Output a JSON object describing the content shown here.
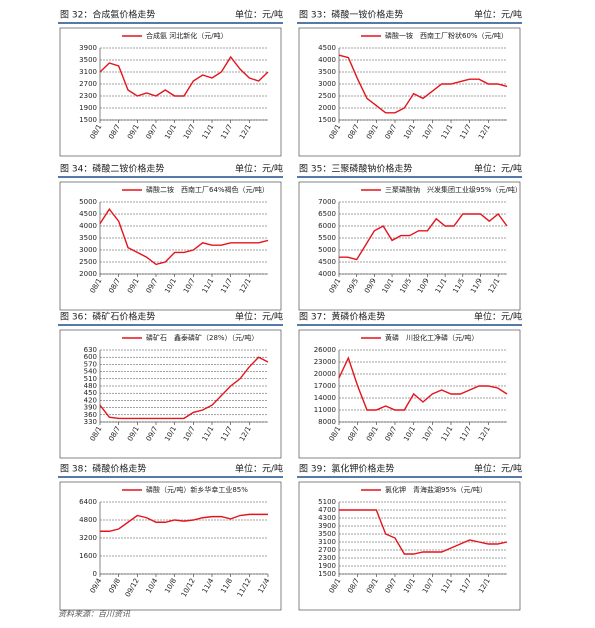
{
  "panels": [
    {
      "title": "图 32：合成氨价格走势",
      "unit": "单位：元/吨",
      "chart_data": {
        "type": "line",
        "x": [
          0,
          3,
          6,
          9,
          12,
          15,
          18,
          21,
          24,
          27,
          30,
          33,
          36,
          39,
          42,
          45,
          48,
          51,
          54
        ],
        "series": [
          {
            "name": "合成氨 河北新化（元/吨）",
            "color": "#e3141c",
            "values": [
              3100,
              3400,
              3300,
              2500,
              2300,
              2400,
              2300,
              2500,
              2300,
              2300,
              2800,
              3000,
              2900,
              3100,
              3600,
              3200,
              2900,
              2800,
              3100
            ]
          }
        ],
        "xlim": [
          0,
          54
        ],
        "xticks": [
          {
            "value": 0,
            "label": "08/1"
          },
          {
            "value": 6,
            "label": "08/7"
          },
          {
            "value": 12,
            "label": "09/1"
          },
          {
            "value": 18,
            "label": "09/7"
          },
          {
            "value": 24,
            "label": "10/1"
          },
          {
            "value": 30,
            "label": "10/7"
          },
          {
            "value": 36,
            "label": "11/1"
          },
          {
            "value": 42,
            "label": "11/7"
          },
          {
            "value": 48,
            "label": "12/1"
          }
        ],
        "ylim": [
          1500,
          3900
        ],
        "yticks": [
          1500,
          1900,
          2300,
          2700,
          3100,
          3500,
          3900
        ],
        "grid": true
      }
    },
    {
      "title": "图 33：磷酸一铵价格走势",
      "unit": "单位：元/吨",
      "chart_data": {
        "type": "line",
        "x": [
          0,
          3,
          6,
          9,
          12,
          15,
          18,
          21,
          24,
          27,
          30,
          33,
          36,
          39,
          42,
          45,
          48,
          51,
          54
        ],
        "series": [
          {
            "name": "磷酸一铵　西南工厂粉状60%（元/吨）",
            "color": "#e3141c",
            "values": [
              4200,
              4100,
              3200,
              2400,
              2100,
              1800,
              1800,
              2000,
              2600,
              2400,
              2700,
              3000,
              3000,
              3100,
              3200,
              3200,
              3000,
              3000,
              2900
            ]
          }
        ],
        "xlim": [
          0,
          54
        ],
        "xticks": [
          {
            "value": 0,
            "label": "08/1"
          },
          {
            "value": 6,
            "label": "08/7"
          },
          {
            "value": 12,
            "label": "09/1"
          },
          {
            "value": 18,
            "label": "09/7"
          },
          {
            "value": 24,
            "label": "10/1"
          },
          {
            "value": 30,
            "label": "10/7"
          },
          {
            "value": 36,
            "label": "11/1"
          },
          {
            "value": 42,
            "label": "11/7"
          },
          {
            "value": 48,
            "label": "12/1"
          }
        ],
        "ylim": [
          1500,
          4500
        ],
        "yticks": [
          1500,
          2000,
          2500,
          3000,
          3500,
          4000,
          4500
        ],
        "grid": true
      }
    },
    {
      "title": "图 34：磷酸二铵价格走势",
      "unit": "单位：元/吨",
      "chart_data": {
        "type": "line",
        "x": [
          0,
          3,
          6,
          9,
          12,
          15,
          18,
          21,
          24,
          27,
          30,
          33,
          36,
          39,
          42,
          45,
          48,
          51,
          54
        ],
        "series": [
          {
            "name": "磷酸二铵　西南工厂64%褐色（元/吨）",
            "color": "#e3141c",
            "values": [
              4100,
              4700,
              4200,
              3100,
              2900,
              2700,
              2400,
              2500,
              2900,
              2900,
              3000,
              3300,
              3200,
              3200,
              3300,
              3300,
              3300,
              3300,
              3400
            ]
          }
        ],
        "xlim": [
          0,
          54
        ],
        "xticks": [
          {
            "value": 0,
            "label": "08/1"
          },
          {
            "value": 6,
            "label": "08/7"
          },
          {
            "value": 12,
            "label": "09/1"
          },
          {
            "value": 18,
            "label": "09/7"
          },
          {
            "value": 24,
            "label": "10/1"
          },
          {
            "value": 30,
            "label": "10/7"
          },
          {
            "value": 36,
            "label": "11/1"
          },
          {
            "value": 42,
            "label": "11/7"
          },
          {
            "value": 48,
            "label": "12/1"
          }
        ],
        "ylim": [
          2000,
          5000
        ],
        "yticks": [
          2000,
          2500,
          3000,
          3500,
          4000,
          4500,
          5000
        ],
        "grid": true
      }
    },
    {
      "title": "图 35：三聚磷酸钠价格走势",
      "unit": "单位：元/吨",
      "chart_data": {
        "type": "line",
        "x": [
          0,
          2,
          4,
          6,
          8,
          10,
          12,
          14,
          16,
          18,
          20,
          22,
          24,
          26,
          28,
          30,
          32,
          34,
          36,
          38
        ],
        "series": [
          {
            "name": "三聚磷酸钠　兴发集团工业级95%（元/吨）",
            "color": "#e3141c",
            "values": [
              4700,
              4700,
              4600,
              5200,
              5800,
              6000,
              5400,
              5600,
              5600,
              5800,
              5800,
              6300,
              6000,
              6000,
              6500,
              6500,
              6500,
              6200,
              6500,
              6000
            ]
          }
        ],
        "xlim": [
          0,
          38
        ],
        "xticks": [
          {
            "value": 0,
            "label": "09/1"
          },
          {
            "value": 4,
            "label": "09/5"
          },
          {
            "value": 8,
            "label": "09/9"
          },
          {
            "value": 12,
            "label": "10/1"
          },
          {
            "value": 16,
            "label": "10/5"
          },
          {
            "value": 20,
            "label": "10/9"
          },
          {
            "value": 24,
            "label": "11/1"
          },
          {
            "value": 28,
            "label": "11/5"
          },
          {
            "value": 32,
            "label": "11/9"
          },
          {
            "value": 36,
            "label": "12/1"
          }
        ],
        "ylim": [
          4000,
          7000
        ],
        "yticks": [
          4000,
          4500,
          5000,
          5500,
          6000,
          6500,
          7000
        ],
        "grid": true
      }
    },
    {
      "title": "图 36：磷矿石价格走势",
      "unit": "单位：元/吨",
      "chart_data": {
        "type": "line",
        "x": [
          0,
          3,
          6,
          9,
          12,
          15,
          18,
          21,
          24,
          27,
          30,
          33,
          36,
          39,
          42,
          45,
          48,
          51,
          54
        ],
        "series": [
          {
            "name": "磷矿石　鑫泰磷矿（28%）（元/吨）",
            "color": "#e3141c",
            "values": [
              400,
              350,
              345,
              345,
              345,
              345,
              345,
              345,
              345,
              345,
              370,
              380,
              400,
              440,
              480,
              510,
              560,
              600,
              580
            ]
          }
        ],
        "xlim": [
          0,
          54
        ],
        "xticks": [
          {
            "value": 0,
            "label": "08/1"
          },
          {
            "value": 6,
            "label": "08/7"
          },
          {
            "value": 12,
            "label": "09/1"
          },
          {
            "value": 18,
            "label": "09/7"
          },
          {
            "value": 24,
            "label": "10/1"
          },
          {
            "value": 30,
            "label": "10/7"
          },
          {
            "value": 36,
            "label": "11/1"
          },
          {
            "value": 42,
            "label": "11/7"
          },
          {
            "value": 48,
            "label": "12/1"
          }
        ],
        "ylim": [
          330,
          630
        ],
        "yticks": [
          330,
          360,
          390,
          420,
          450,
          480,
          510,
          540,
          570,
          600,
          630
        ],
        "grid": true
      }
    },
    {
      "title": "图 37：黄磷价格走势",
      "unit": "单位：元/吨",
      "chart_data": {
        "type": "line",
        "x": [
          0,
          3,
          6,
          9,
          12,
          15,
          18,
          21,
          24,
          27,
          30,
          33,
          36,
          39,
          42,
          45,
          48,
          51,
          54
        ],
        "series": [
          {
            "name": "黄磷　川投化工净磷（元/吨）",
            "color": "#e3141c",
            "values": [
              19000,
              24000,
              17000,
              11000,
              11000,
              12000,
              11000,
              11000,
              15000,
              13000,
              15000,
              16000,
              15000,
              15000,
              16000,
              17000,
              17000,
              16500,
              15000
            ]
          }
        ],
        "xlim": [
          0,
          54
        ],
        "xticks": [
          {
            "value": 0,
            "label": "08/1"
          },
          {
            "value": 6,
            "label": "08/7"
          },
          {
            "value": 12,
            "label": "09/1"
          },
          {
            "value": 18,
            "label": "09/7"
          },
          {
            "value": 24,
            "label": "10/1"
          },
          {
            "value": 30,
            "label": "10/7"
          },
          {
            "value": 36,
            "label": "11/1"
          },
          {
            "value": 42,
            "label": "11/7"
          },
          {
            "value": 48,
            "label": "12/1"
          }
        ],
        "ylim": [
          8000,
          26000
        ],
        "yticks": [
          8000,
          11000,
          14000,
          17000,
          20000,
          23000,
          26000
        ],
        "grid": true
      }
    },
    {
      "title": "图 38：磷酸价格走势",
      "unit": "单位：元/吨",
      "chart_data": {
        "type": "line",
        "x": [
          0,
          2,
          4,
          6,
          8,
          10,
          12,
          14,
          16,
          18,
          20,
          22,
          24,
          26,
          28,
          30,
          32,
          34,
          36
        ],
        "series": [
          {
            "name": "磷酸（元/吨）新乡华幸工业85%",
            "color": "#e3141c",
            "values": [
              3800,
              3800,
              4000,
              4600,
              5200,
              5000,
              4600,
              4600,
              4800,
              4700,
              4800,
              5000,
              5100,
              5100,
              4900,
              5200,
              5300,
              5300,
              5300
            ]
          }
        ],
        "xlim": [
          0,
          36
        ],
        "xticks": [
          {
            "value": 0,
            "label": "09/4"
          },
          {
            "value": 4,
            "label": "09/8"
          },
          {
            "value": 8,
            "label": "09/12"
          },
          {
            "value": 12,
            "label": "10/4"
          },
          {
            "value": 16,
            "label": "10/8"
          },
          {
            "value": 20,
            "label": "10/12"
          },
          {
            "value": 24,
            "label": "11/4"
          },
          {
            "value": 28,
            "label": "11/8"
          },
          {
            "value": 32,
            "label": "11/12"
          },
          {
            "value": 36,
            "label": "12/4"
          }
        ],
        "ylim": [
          0,
          6400
        ],
        "yticks": [
          0,
          1600,
          3200,
          4800,
          6400
        ],
        "grid": true
      }
    },
    {
      "title": "图 39：氯化钾价格走势",
      "unit": "单位：元/吨",
      "chart_data": {
        "type": "line",
        "x": [
          0,
          3,
          6,
          9,
          12,
          15,
          18,
          21,
          24,
          27,
          30,
          33,
          36,
          39,
          42,
          45,
          48,
          51,
          54
        ],
        "series": [
          {
            "name": "氯化钾　青海盐湖95%（元/吨）",
            "color": "#e3141c",
            "values": [
              4700,
              4700,
              4700,
              4700,
              4700,
              3500,
              3300,
              2500,
              2500,
              2600,
              2600,
              2600,
              2800,
              3000,
              3200,
              3100,
              3000,
              3000,
              3100
            ]
          }
        ],
        "xlim": [
          0,
          54
        ],
        "xticks": [
          {
            "value": 0,
            "label": "08/1"
          },
          {
            "value": 6,
            "label": "08/7"
          },
          {
            "value": 12,
            "label": "09/1"
          },
          {
            "value": 18,
            "label": "09/7"
          },
          {
            "value": 24,
            "label": "10/1"
          },
          {
            "value": 30,
            "label": "10/7"
          },
          {
            "value": 36,
            "label": "11/1"
          },
          {
            "value": 42,
            "label": "11/7"
          },
          {
            "value": 48,
            "label": "12/1"
          }
        ],
        "ylim": [
          1500,
          5100
        ],
        "yticks": [
          1500,
          1900,
          2300,
          2700,
          3100,
          3500,
          3900,
          4300,
          4700,
          5100
        ],
        "grid": true
      }
    }
  ],
  "source": "资料来源：百川资讯"
}
